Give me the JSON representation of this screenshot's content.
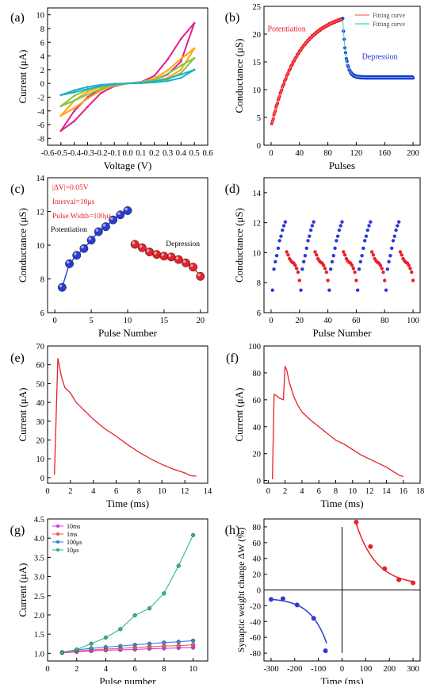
{
  "figure": {
    "panel_labels": [
      "(a)",
      "(b)",
      "(c)",
      "(d)",
      "(e)",
      "(f)",
      "(g)",
      "(h)"
    ]
  },
  "chart_data": [
    {
      "id": "a",
      "type": "line",
      "title": "",
      "xlabel": "Voltage (V)",
      "ylabel": "Current (μA)",
      "xlim": [
        -0.6,
        0.6
      ],
      "ylim": [
        -9,
        11
      ],
      "xticks": [
        "-0.6",
        "-0.5",
        "-0.4",
        "-0.3",
        "-0.2",
        "-0.1",
        "0.0",
        "0.1",
        "0.2",
        "0.3",
        "0.4",
        "0.5",
        "0.6"
      ],
      "xtick_values": [
        -0.6,
        -0.5,
        -0.4,
        -0.3,
        -0.2,
        -0.1,
        0.0,
        0.1,
        0.2,
        0.3,
        0.4,
        0.5,
        0.6
      ],
      "yticks": [
        "-8",
        "-6",
        "-4",
        "-2",
        "0",
        "2",
        "4",
        "6",
        "8",
        "10"
      ],
      "ytick_values": [
        -8,
        -6,
        -4,
        -2,
        0,
        2,
        4,
        6,
        8,
        10
      ],
      "grid": false,
      "series": [
        {
          "color": "#e0218a",
          "max": 8.8,
          "min": -6.9,
          "upper": [
            [
              -0.5,
              -6.9
            ],
            [
              -0.4,
              -4.0
            ],
            [
              -0.3,
              -2.0
            ],
            [
              -0.2,
              -0.8
            ],
            [
              -0.1,
              -0.2
            ],
            [
              0.0,
              0.0
            ],
            [
              0.1,
              0.2
            ],
            [
              0.2,
              1.1
            ],
            [
              0.3,
              3.5
            ],
            [
              0.4,
              6.5
            ],
            [
              0.5,
              8.8
            ]
          ],
          "lower": [
            [
              -0.5,
              -6.9
            ],
            [
              -0.4,
              -5.5
            ],
            [
              -0.3,
              -3.4
            ],
            [
              -0.2,
              -1.4
            ],
            [
              -0.1,
              -0.4
            ],
            [
              0.0,
              0.0
            ],
            [
              0.1,
              0.2
            ],
            [
              0.2,
              0.5
            ],
            [
              0.3,
              1.3
            ],
            [
              0.4,
              3.2
            ],
            [
              0.5,
              8.8
            ]
          ]
        },
        {
          "color": "#ffa500",
          "max": 5.1,
          "min": -4.7,
          "upper": [
            [
              -0.5,
              -4.7
            ],
            [
              -0.4,
              -2.5
            ],
            [
              -0.3,
              -1.2
            ],
            [
              -0.2,
              -0.5
            ],
            [
              -0.1,
              -0.1
            ],
            [
              0.0,
              0.0
            ],
            [
              0.1,
              0.2
            ],
            [
              0.2,
              0.7
            ],
            [
              0.3,
              1.9
            ],
            [
              0.4,
              3.6
            ],
            [
              0.5,
              5.1
            ]
          ],
          "lower": [
            [
              -0.5,
              -4.7
            ],
            [
              -0.4,
              -3.6
            ],
            [
              -0.3,
              -2.2
            ],
            [
              -0.2,
              -1.0
            ],
            [
              -0.1,
              -0.3
            ],
            [
              0.0,
              0.0
            ],
            [
              0.1,
              0.1
            ],
            [
              0.2,
              0.3
            ],
            [
              0.3,
              0.8
            ],
            [
              0.4,
              2.0
            ],
            [
              0.5,
              5.1
            ]
          ]
        },
        {
          "color": "#7ac943",
          "max": 3.7,
          "min": -3.3,
          "upper": [
            [
              -0.5,
              -3.3
            ],
            [
              -0.4,
              -1.8
            ],
            [
              -0.3,
              -0.9
            ],
            [
              -0.2,
              -0.4
            ],
            [
              -0.1,
              -0.1
            ],
            [
              0.0,
              0.0
            ],
            [
              0.1,
              0.15
            ],
            [
              0.2,
              0.5
            ],
            [
              0.3,
              1.4
            ],
            [
              0.4,
              2.6
            ],
            [
              0.5,
              3.7
            ]
          ],
          "lower": [
            [
              -0.5,
              -3.3
            ],
            [
              -0.4,
              -2.5
            ],
            [
              -0.3,
              -1.6
            ],
            [
              -0.2,
              -0.8
            ],
            [
              -0.1,
              -0.25
            ],
            [
              0.0,
              0.0
            ],
            [
              0.1,
              0.1
            ],
            [
              0.2,
              0.25
            ],
            [
              0.3,
              0.6
            ],
            [
              0.4,
              1.5
            ],
            [
              0.5,
              3.7
            ]
          ]
        },
        {
          "color": "#1fb0c7",
          "max": 2.0,
          "min": -1.7,
          "upper": [
            [
              -0.5,
              -1.7
            ],
            [
              -0.4,
              -1.0
            ],
            [
              -0.3,
              -0.5
            ],
            [
              -0.2,
              -0.2
            ],
            [
              -0.1,
              -0.05
            ],
            [
              0.0,
              0.0
            ],
            [
              0.1,
              0.1
            ],
            [
              0.2,
              0.3
            ],
            [
              0.3,
              0.7
            ],
            [
              0.4,
              1.3
            ],
            [
              0.5,
              2.0
            ]
          ],
          "lower": [
            [
              -0.5,
              -1.7
            ],
            [
              -0.4,
              -1.3
            ],
            [
              -0.3,
              -0.8
            ],
            [
              -0.2,
              -0.4
            ],
            [
              -0.1,
              -0.1
            ],
            [
              0.0,
              0.0
            ],
            [
              0.1,
              0.05
            ],
            [
              0.2,
              0.15
            ],
            [
              0.3,
              0.35
            ],
            [
              0.4,
              0.8
            ],
            [
              0.5,
              2.0
            ]
          ]
        }
      ]
    },
    {
      "id": "b",
      "type": "scatter",
      "title": "",
      "xlabel": "Pulses",
      "ylabel": "Conductance (μS)",
      "xlim": [
        -10,
        210
      ],
      "ylim": [
        0,
        25
      ],
      "xticks": [
        "0",
        "40",
        "80",
        "120",
        "160",
        "200"
      ],
      "xtick_values": [
        0,
        40,
        80,
        120,
        160,
        200
      ],
      "yticks": [
        "0",
        "5",
        "10",
        "15",
        "20",
        "25"
      ],
      "ytick_values": [
        0,
        5,
        10,
        15,
        20,
        25
      ],
      "grid": false,
      "legend_placement": "top-right",
      "legend": [
        {
          "label": "Fitting curve",
          "color": "#ff6a6a"
        },
        {
          "label": "Fitting curve",
          "color": "#2fd3c0"
        }
      ],
      "annotations": [
        {
          "text": "Potentiation",
          "color": "#e8202a",
          "x": -5,
          "y": 20.5
        },
        {
          "text": "Depression",
          "color": "#2531d9",
          "x": 128,
          "y": 15.5
        }
      ],
      "potentiation": {
        "color": "#e8202a",
        "x_start": 1,
        "x_end": 100,
        "g0": 3.8,
        "g1": 22.7,
        "rate": 0.026
      },
      "depression": {
        "color": "#2531d9",
        "x_start": 101,
        "x_end": 200,
        "g0": 22.7,
        "g_inf": 12.2,
        "rate": 0.22
      }
    },
    {
      "id": "c",
      "type": "scatter",
      "title": "",
      "xlabel": "Pulse Number",
      "ylabel": "Conductance (μS)",
      "xlim": [
        -1,
        21
      ],
      "ylim": [
        6,
        14
      ],
      "xticks": [
        "0",
        "5",
        "10",
        "15",
        "20"
      ],
      "xtick_values": [
        0,
        5,
        10,
        15,
        20
      ],
      "yticks": [
        "6",
        "8",
        "10",
        "12",
        "14"
      ],
      "ytick_values": [
        6,
        8,
        10,
        12,
        14
      ],
      "grid": false,
      "notes": [
        "|ΔV|=0.05V",
        "Interval=10μs",
        "Pulse Width=100μs"
      ],
      "annotations": [
        {
          "text": "Potentiation",
          "color": "#000000"
        },
        {
          "text": "Depression",
          "color": "#000000"
        }
      ],
      "series": [
        {
          "color": "#2b3bd6",
          "x": [
            1,
            2,
            3,
            4,
            5,
            6,
            7,
            8,
            9,
            10
          ],
          "values": [
            7.5,
            8.9,
            9.4,
            9.8,
            10.3,
            10.8,
            11.1,
            11.5,
            11.8,
            12.05
          ]
        },
        {
          "color": "#e8202a",
          "x": [
            11,
            12,
            13,
            14,
            15,
            16,
            17,
            18,
            19,
            20
          ],
          "values": [
            10.05,
            9.85,
            9.6,
            9.45,
            9.35,
            9.3,
            9.15,
            8.95,
            8.7,
            8.15
          ]
        }
      ]
    },
    {
      "id": "d",
      "type": "scatter",
      "title": "",
      "xlabel": "Pulse Number",
      "ylabel": "Conductance (μS)",
      "xlim": [
        -5,
        105
      ],
      "ylim": [
        6,
        15
      ],
      "xticks": [
        "0",
        "20",
        "40",
        "60",
        "80",
        "100"
      ],
      "xtick_values": [
        0,
        20,
        40,
        60,
        80,
        100
      ],
      "yticks": [
        "6",
        "8",
        "10",
        "12",
        "14"
      ],
      "ytick_values": [
        6,
        8,
        10,
        12,
        14
      ],
      "grid": false,
      "cycles": 5,
      "potentiation": {
        "color": "#2b3bd6",
        "values": [
          7.5,
          8.9,
          9.4,
          9.8,
          10.3,
          10.8,
          11.1,
          11.5,
          11.8,
          12.05
        ]
      },
      "depression": {
        "color": "#e8202a",
        "values": [
          10.05,
          9.85,
          9.6,
          9.45,
          9.35,
          9.3,
          9.15,
          8.95,
          8.7,
          8.15
        ]
      }
    },
    {
      "id": "e",
      "type": "line",
      "title": "",
      "xlabel": "Time (ms)",
      "ylabel": "Current (μA)",
      "xlim": [
        0,
        14
      ],
      "ylim": [
        -3,
        70
      ],
      "xticks": [
        "0",
        "2",
        "4",
        "6",
        "8",
        "10",
        "12",
        "14"
      ],
      "xtick_values": [
        0,
        2,
        4,
        6,
        8,
        10,
        12,
        14
      ],
      "yticks": [
        "0",
        "10",
        "20",
        "30",
        "40",
        "50",
        "60",
        "70"
      ],
      "ytick_values": [
        0,
        10,
        20,
        30,
        40,
        50,
        60,
        70
      ],
      "grid": false,
      "series": [
        {
          "color": "#e8202a",
          "x": [
            0.6,
            0.9,
            1.2,
            1.5,
            2.0,
            2.5,
            3.0,
            3.5,
            4.0,
            5.0,
            6.0,
            7.0,
            8.0,
            9.0,
            10.0,
            11.0,
            12.0,
            12.5,
            13.0
          ],
          "values": [
            1.5,
            63.5,
            54.0,
            48.0,
            45.0,
            40.0,
            37.0,
            34.0,
            31.0,
            26.0,
            22.0,
            17.5,
            13.5,
            10.0,
            7.0,
            4.5,
            2.5,
            1.0,
            0.8
          ]
        }
      ]
    },
    {
      "id": "f",
      "type": "line",
      "title": "",
      "xlabel": "Time (ms)",
      "ylabel": "Current (μA)",
      "xlim": [
        -0.5,
        18
      ],
      "ylim": [
        -2,
        100
      ],
      "xticks": [
        "0",
        "2",
        "4",
        "6",
        "8",
        "10",
        "12",
        "14",
        "16",
        "18"
      ],
      "xtick_values": [
        0,
        2,
        4,
        6,
        8,
        10,
        12,
        14,
        16,
        18
      ],
      "yticks": [
        "0",
        "20",
        "40",
        "60",
        "80",
        "100"
      ],
      "ytick_values": [
        0,
        20,
        40,
        60,
        80,
        100
      ],
      "grid": false,
      "series": [
        {
          "color": "#e8202a",
          "x": [
            0.5,
            0.7,
            1.0,
            1.4,
            1.8,
            2.0,
            2.2,
            2.5,
            3.0,
            3.5,
            4.0,
            5.0,
            6.0,
            7.0,
            8.0,
            9.0,
            10.0,
            11.0,
            12.0,
            13.0,
            14.0,
            15.0,
            15.5,
            16.0
          ],
          "values": [
            1.0,
            64.0,
            63.0,
            61.0,
            60.0,
            85.0,
            82.0,
            73.0,
            63.0,
            56.0,
            51.0,
            45.0,
            40.0,
            35.0,
            30.0,
            27.0,
            23.0,
            19.0,
            16.0,
            13.0,
            10.0,
            6.0,
            4.0,
            3.0
          ]
        }
      ]
    },
    {
      "id": "g",
      "type": "line",
      "title": "",
      "xlabel": "Pulse number",
      "ylabel": "Current (μA)",
      "xlim": [
        0,
        11
      ],
      "ylim": [
        0.8,
        4.5
      ],
      "xticks": [
        "0",
        "2",
        "4",
        "6",
        "8",
        "10"
      ],
      "xtick_values": [
        0,
        2,
        4,
        6,
        8,
        10
      ],
      "yticks": [
        "1.0",
        "1.5",
        "2.0",
        "2.5",
        "3.0",
        "3.5",
        "4.0",
        "4.5"
      ],
      "ytick_values": [
        1.0,
        1.5,
        2.0,
        2.5,
        3.0,
        3.5,
        4.0,
        4.5
      ],
      "grid": false,
      "legend_placement": "top-left",
      "categories": [
        1,
        2,
        3,
        4,
        5,
        6,
        7,
        8,
        9,
        10
      ],
      "series": [
        {
          "name": "10ms",
          "color": "#d63be0",
          "values": [
            1.01,
            1.04,
            1.06,
            1.08,
            1.09,
            1.1,
            1.12,
            1.13,
            1.14,
            1.15
          ]
        },
        {
          "name": "1ms",
          "color": "#f05a5a",
          "values": [
            1.02,
            1.06,
            1.09,
            1.11,
            1.13,
            1.15,
            1.17,
            1.19,
            1.2,
            1.22
          ]
        },
        {
          "name": "100μs",
          "color": "#3b82d6",
          "values": [
            1.03,
            1.09,
            1.13,
            1.16,
            1.19,
            1.22,
            1.25,
            1.28,
            1.3,
            1.33
          ]
        },
        {
          "name": "10μs",
          "color": "#27b88a",
          "values": [
            1.02,
            1.1,
            1.25,
            1.41,
            1.63,
            1.99,
            2.17,
            2.56,
            3.28,
            4.08
          ]
        }
      ]
    },
    {
      "id": "h",
      "type": "scatter",
      "title": "",
      "xlabel": "Time (ms)",
      "ylabel": "Synaptic weight change ΔW (%)",
      "xlim": [
        -330,
        330
      ],
      "ylim": [
        -90,
        90
      ],
      "xticks": [
        "-300",
        "-200",
        "-100",
        "0",
        "100",
        "200",
        "300"
      ],
      "xtick_values": [
        -300,
        -200,
        -100,
        0,
        100,
        200,
        300
      ],
      "yticks": [
        "-80",
        "-60",
        "-40",
        "-20",
        "0",
        "20",
        "40",
        "60",
        "80"
      ],
      "ytick_values": [
        -80,
        -60,
        -40,
        -20,
        0,
        20,
        40,
        60,
        80
      ],
      "grid": false,
      "series": [
        {
          "color": "#e8202a",
          "x": [
            60,
            120,
            180,
            240,
            300
          ],
          "values": [
            86,
            55,
            27,
            13,
            9
          ],
          "fit": {
            "A": 158,
            "tau": 85,
            "c": 6
          }
        },
        {
          "color": "#2b3bd6",
          "x": [
            -300,
            -250,
            -190,
            -120,
            -70
          ],
          "values": [
            -12,
            -11,
            -19,
            -36,
            -77
          ],
          "fit": {
            "A": -150,
            "tau": 68,
            "c": -10
          }
        }
      ]
    }
  ]
}
